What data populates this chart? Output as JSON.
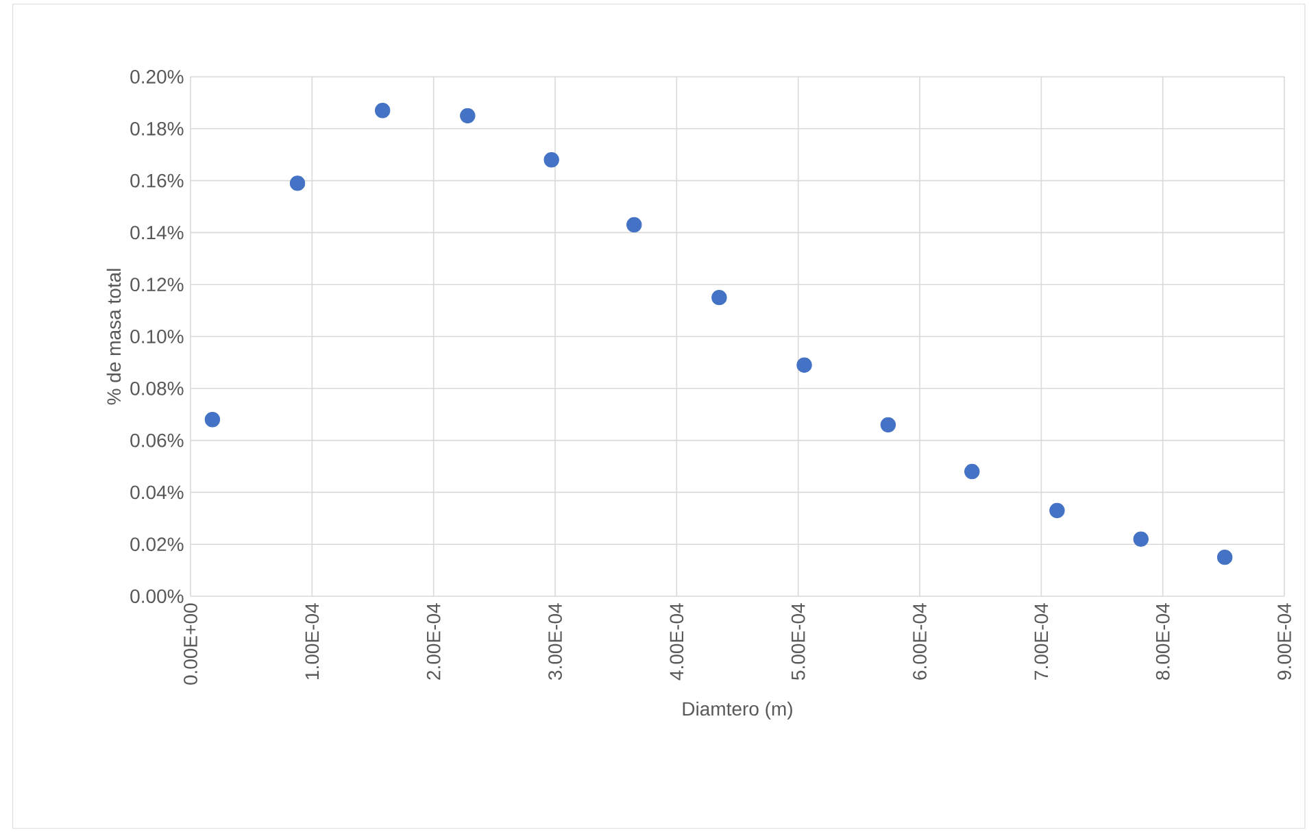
{
  "chart_data": {
    "type": "scatter",
    "xlabel": "Diamtero (m)",
    "ylabel": "% de masa total",
    "x": [
      1.8e-05,
      8.8e-05,
      0.000158,
      0.000228,
      0.000297,
      0.000365,
      0.000435,
      0.000505,
      0.000574,
      0.000643,
      0.000713,
      0.000782,
      0.000851
    ],
    "values": [
      0.068,
      0.159,
      0.187,
      0.185,
      0.168,
      0.143,
      0.115,
      0.089,
      0.066,
      0.048,
      0.033,
      0.022,
      0.015
    ],
    "color": "#4472c4",
    "grid": true,
    "xlim": [
      0,
      0.0009
    ],
    "xticks": [
      {
        "value": 0,
        "label": "0.00E+00"
      },
      {
        "value": 0.0001,
        "label": "1.00E-04"
      },
      {
        "value": 0.0002,
        "label": "2.00E-04"
      },
      {
        "value": 0.0003,
        "label": "3.00E-04"
      },
      {
        "value": 0.0004,
        "label": "4.00E-04"
      },
      {
        "value": 0.0005,
        "label": "5.00E-04"
      },
      {
        "value": 0.0006,
        "label": "6.00E-04"
      },
      {
        "value": 0.0007,
        "label": "7.00E-04"
      },
      {
        "value": 0.0008,
        "label": "8.00E-04"
      },
      {
        "value": 0.0009,
        "label": "9.00E-04"
      }
    ],
    "ylim": [
      0,
      0.2
    ],
    "yticks": [
      {
        "value": 0,
        "label": "0.00%"
      },
      {
        "value": 0.02,
        "label": "0.02%"
      },
      {
        "value": 0.04,
        "label": "0.04%"
      },
      {
        "value": 0.06,
        "label": "0.06%"
      },
      {
        "value": 0.08,
        "label": "0.08%"
      },
      {
        "value": 0.1,
        "label": "0.10%"
      },
      {
        "value": 0.12,
        "label": "0.12%"
      },
      {
        "value": 0.14,
        "label": "0.14%"
      },
      {
        "value": 0.16,
        "label": "0.16%"
      },
      {
        "value": 0.18,
        "label": "0.18%"
      },
      {
        "value": 0.2,
        "label": "0.20%"
      }
    ]
  }
}
